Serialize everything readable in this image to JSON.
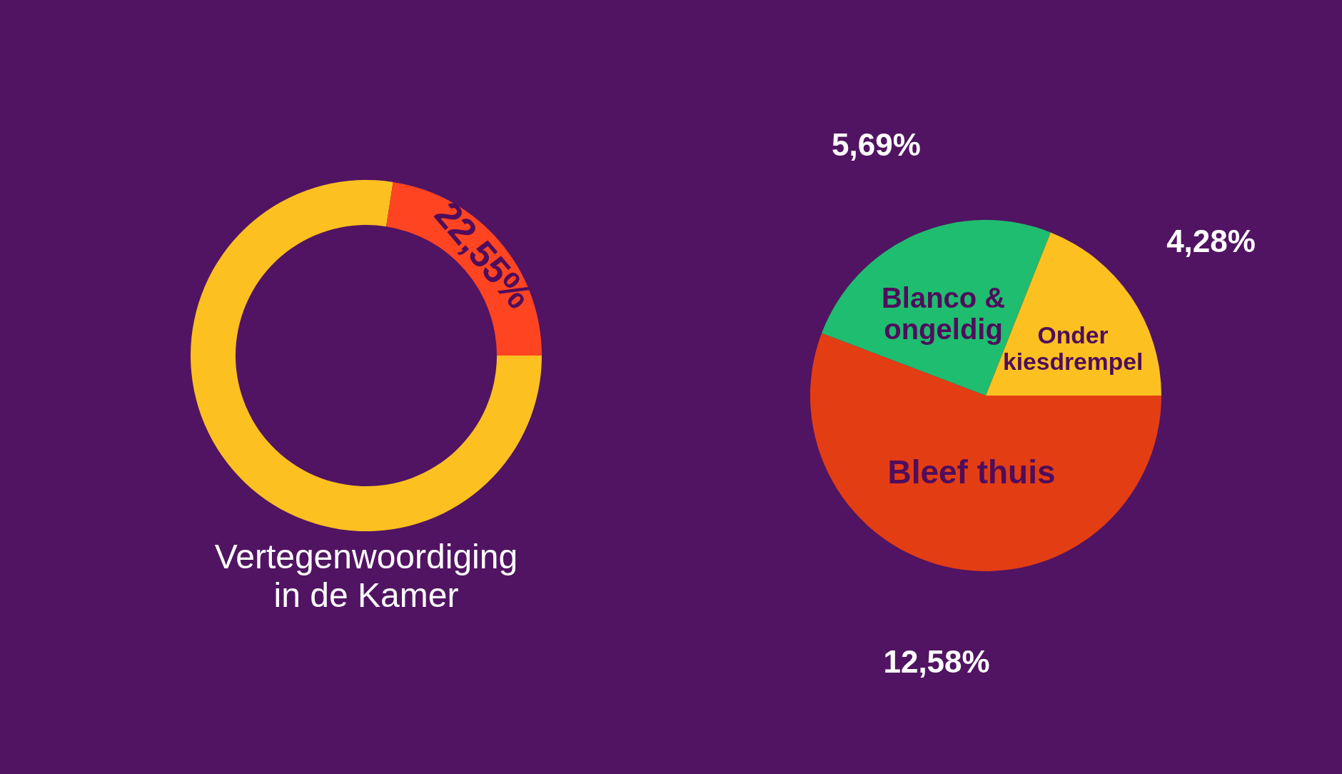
{
  "chart_data": [
    {
      "type": "donut",
      "title": "Vertegenwoordiging in de Kamer",
      "categories": [
        null,
        null
      ],
      "values": [
        77.45,
        22.55
      ],
      "colors": [
        "#fcc020",
        "#ff4422"
      ],
      "value_labels": [
        null,
        "22,55%"
      ]
    },
    {
      "type": "pie",
      "categories": [
        "Bleef thuis",
        "Blanco & ongeldig",
        "Onder kiesdrempel"
      ],
      "values": [
        12.58,
        5.69,
        4.28
      ],
      "colors": [
        "#e33d14",
        "#1fbd6f",
        "#fcc020"
      ],
      "value_labels": [
        "12,58%",
        "5,69%",
        "4,28%"
      ]
    }
  ]
}
